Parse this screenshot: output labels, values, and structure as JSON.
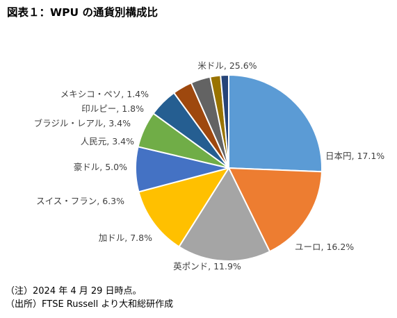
{
  "figure": {
    "title": "図表１：WPU の通貨別構成比"
  },
  "chart_data": {
    "type": "pie",
    "title": "",
    "start": "top, clockwise",
    "slices": [
      {
        "label": "米ドル, 25.6%",
        "value": 25.6,
        "color": "#5B9BD5"
      },
      {
        "label": "日本円, 17.1%",
        "value": 17.1,
        "color": "#ED7D31"
      },
      {
        "label": "ユーロ, 16.2%",
        "value": 16.2,
        "color": "#A5A5A5"
      },
      {
        "label": "英ポンド, 11.9%",
        "value": 11.9,
        "color": "#FFC000"
      },
      {
        "label": "加ドル, 7.8%",
        "value": 7.8,
        "color": "#4472C4"
      },
      {
        "label": "スイス・フラン, 6.3%",
        "value": 6.3,
        "color": "#70AD47"
      },
      {
        "label": "豪ドル, 5.0%",
        "value": 5.0,
        "color": "#255E91"
      },
      {
        "label": "人民元, 3.4%",
        "value": 3.4,
        "color": "#9E480E"
      },
      {
        "label": "ブラジル・レアル, 3.4%",
        "value": 3.4,
        "color": "#636363"
      },
      {
        "label": "印ルピー, 1.8%",
        "value": 1.8,
        "color": "#997300"
      },
      {
        "label": "メキシコ・ペソ, 1.4%",
        "value": 1.4,
        "color": "#264478"
      }
    ]
  },
  "notes": {
    "line1": "（注）2024 年 4 月 29 日時点。",
    "line2": "（出所）FTSE Russell より大和総研作成"
  }
}
